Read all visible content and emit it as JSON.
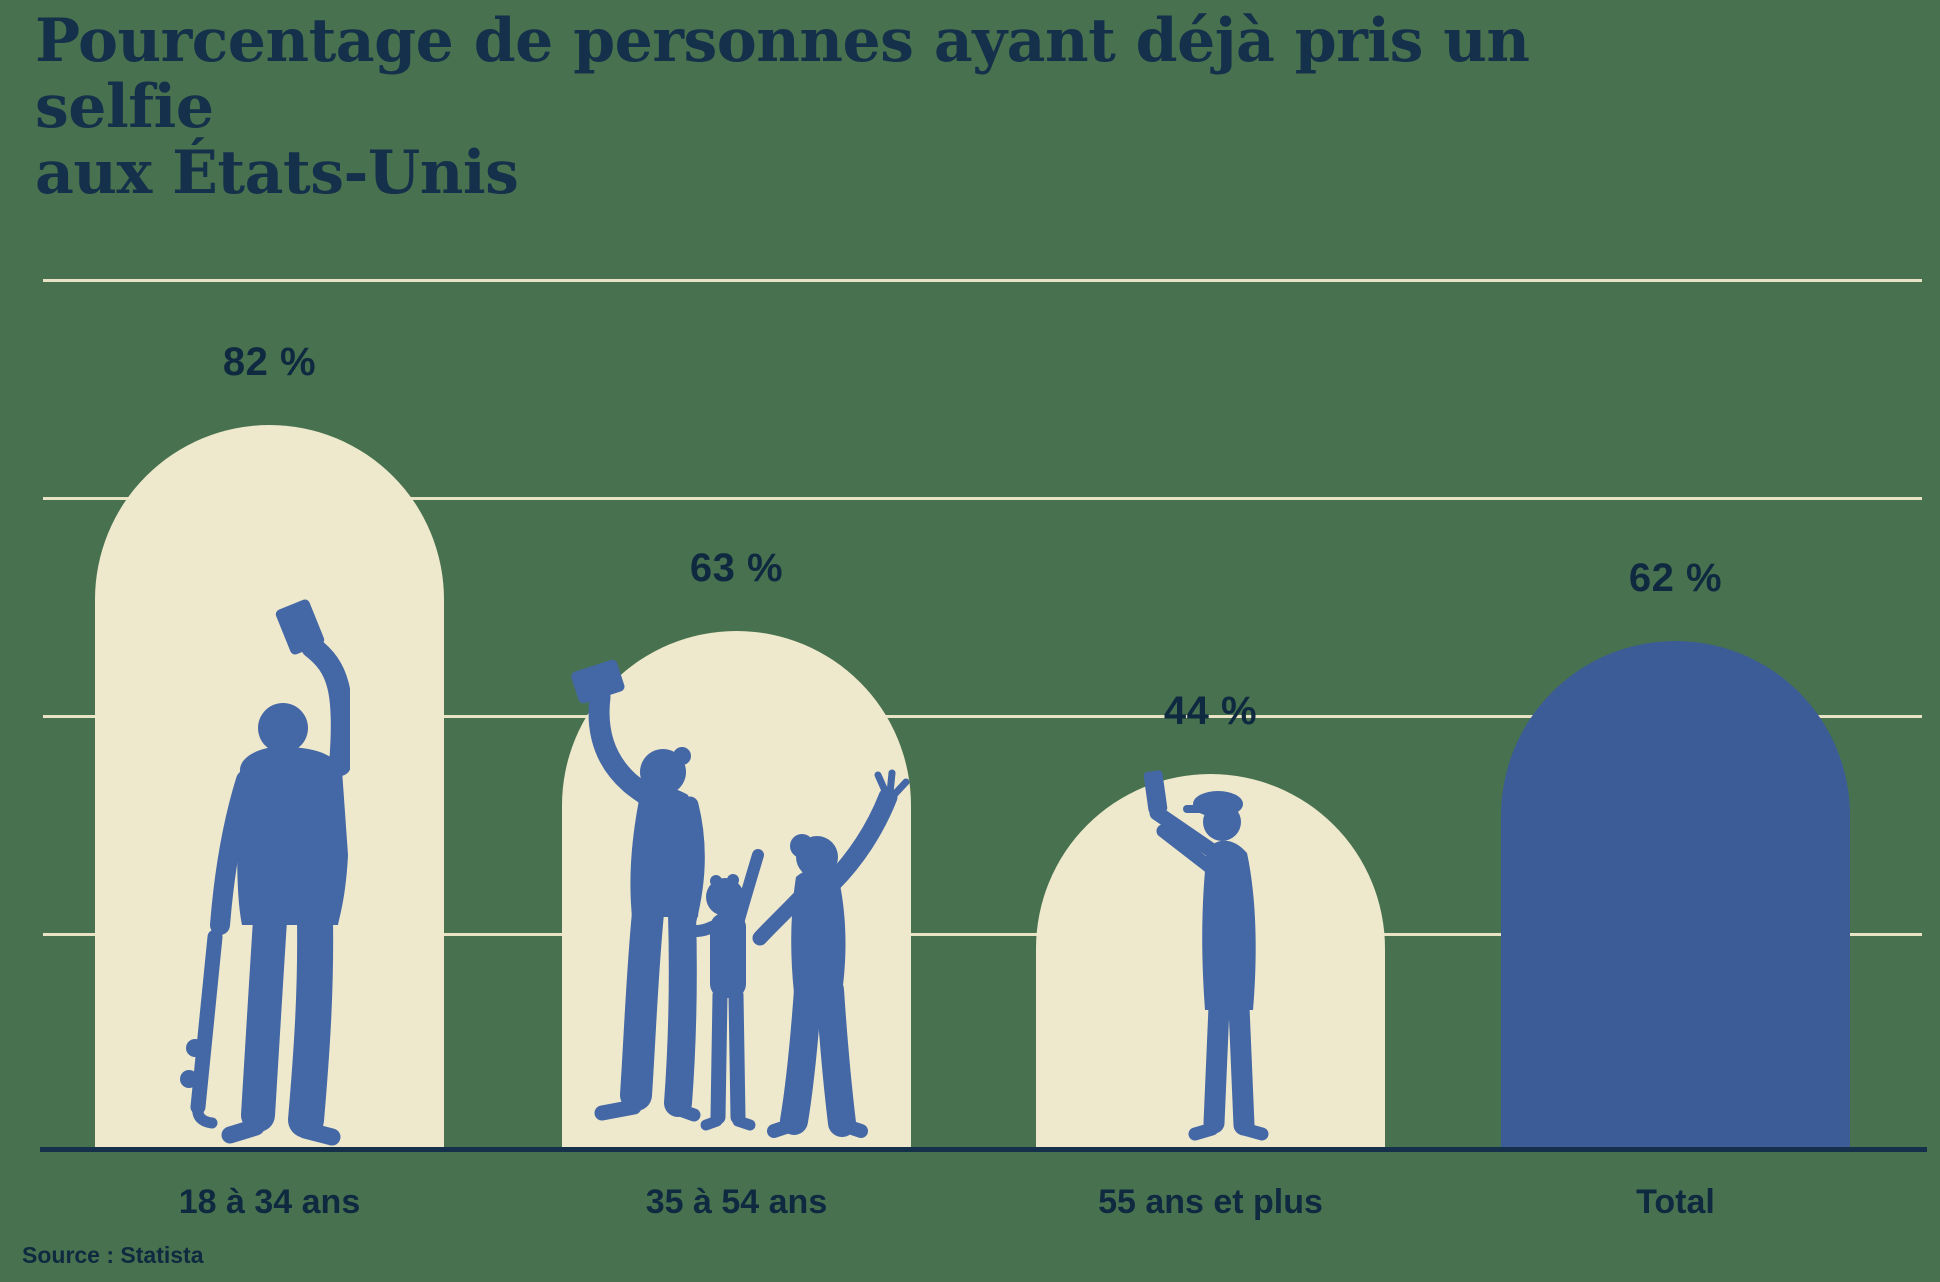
{
  "title": {
    "line1": "Pourcentage de personnes ayant déjà pris un selfie",
    "line2": "aux États-Unis"
  },
  "source": {
    "label": "Source : Statista"
  },
  "chart_data": {
    "type": "bar",
    "title": "Pourcentage de personnes ayant déjà pris un selfie aux États-Unis",
    "categories": [
      "18 à 34 ans",
      "35 à 54 ans",
      "55 ans et plus",
      "Total"
    ],
    "values": [
      82,
      63,
      44,
      62
    ],
    "value_labels": [
      "82 %",
      "63 %",
      "44 %",
      "62 %"
    ],
    "unit": "%",
    "ylim": [
      0,
      100
    ],
    "gridlines_percent": [
      25,
      50,
      75,
      100
    ],
    "grid": "on",
    "legend": "none",
    "xlabel": "",
    "ylabel": "",
    "bar_shape": "arch",
    "bar_styles": [
      "cream-arch-with-silhouette",
      "cream-arch-with-silhouette",
      "cream-arch-with-silhouette",
      "solid-blue-arch"
    ],
    "silhouettes": [
      "young-man-with-skateboard-taking-selfie",
      "family-of-three-taking-selfie",
      "senior-man-in-flat-cap-taking-photo",
      "none"
    ],
    "source": "Statista"
  },
  "colors": {
    "background": "#48724F",
    "bar_cream": "#EEE8CC",
    "bar_blue": "#3B5C96",
    "figure_blue": "#4467A6",
    "gridline": "#E8E3C5",
    "navy": "#14304A",
    "ink": "#0E2940"
  }
}
